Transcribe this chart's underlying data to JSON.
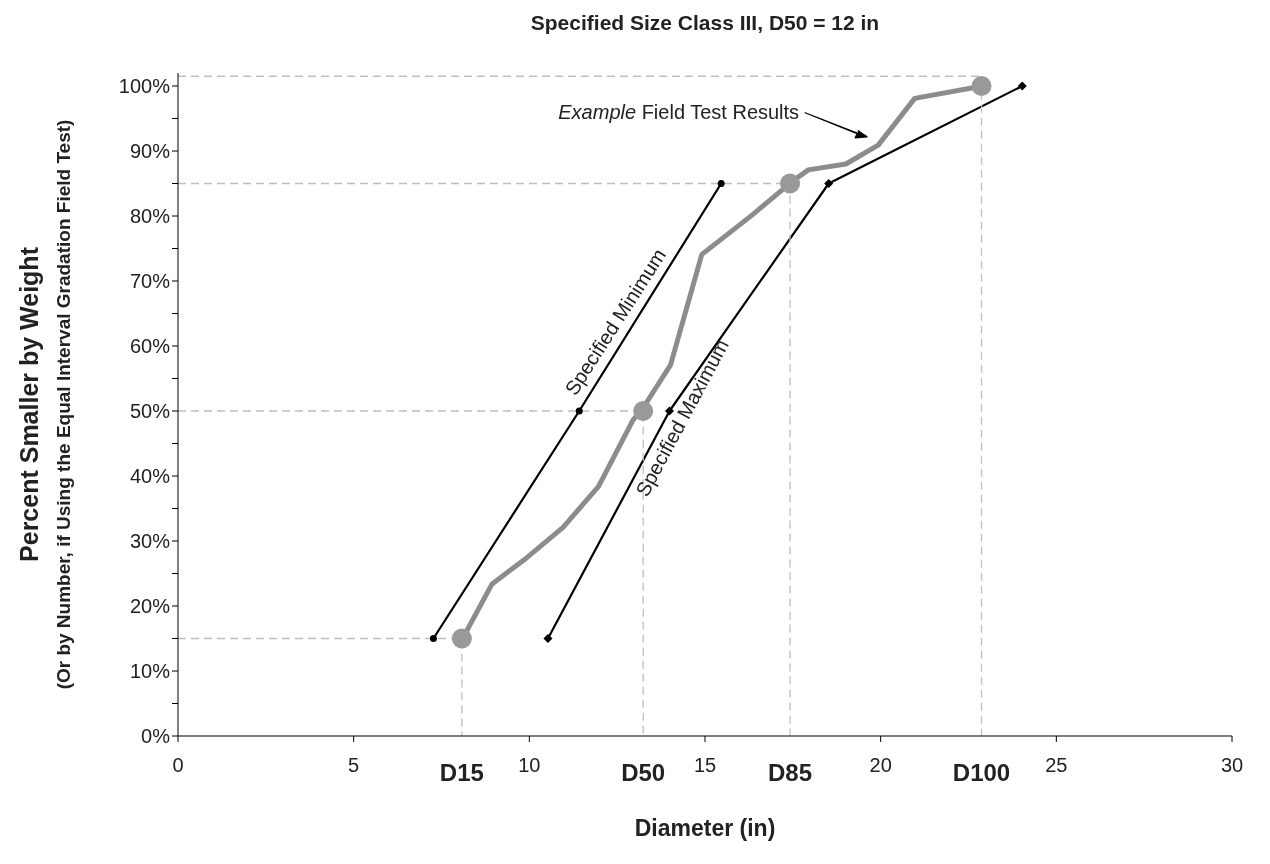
{
  "chart_data": {
    "type": "line",
    "title": "Specified Size Class III, D50 = 12 in",
    "xlabel": "Diameter (in)",
    "ylabel": "Percent Smaller by Weight\n(Or by Number, if Using the Equal Interval Gradation Field Test)",
    "xlim": [
      0,
      30
    ],
    "xticks": [
      0,
      5,
      10,
      15,
      20,
      25,
      30
    ],
    "ylim": [
      0,
      102
    ],
    "yticks": [
      {
        "value": 0,
        "label": "0%"
      },
      {
        "value": 5,
        "label": null
      },
      {
        "value": 10,
        "label": "10%"
      },
      {
        "value": 15,
        "label": null
      },
      {
        "value": 20,
        "label": "20%"
      },
      {
        "value": 25,
        "label": null
      },
      {
        "value": 30,
        "label": "30%"
      },
      {
        "value": 35,
        "label": null
      },
      {
        "value": 40,
        "label": "40%"
      },
      {
        "value": 45,
        "label": null
      },
      {
        "value": 50,
        "label": "50%"
      },
      {
        "value": 55,
        "label": null
      },
      {
        "value": 60,
        "label": "60%"
      },
      {
        "value": 65,
        "label": null
      },
      {
        "value": 70,
        "label": "70%"
      },
      {
        "value": 75,
        "label": null
      },
      {
        "value": 80,
        "label": "80%"
      },
      {
        "value": 85,
        "label": null
      },
      {
        "value": 90,
        "label": "90%"
      },
      {
        "value": 95,
        "label": null
      },
      {
        "value": 100,
        "label": "100%"
      }
    ],
    "grid": false,
    "series": [
      {
        "name": "Specified Minimum",
        "color": "#000000",
        "marker": "circle",
        "x": [
          7.27,
          11.42,
          15.46
        ],
        "values": [
          15,
          50,
          85
        ]
      },
      {
        "name": "Specified Maximum",
        "color": "#000000",
        "marker": "diamond",
        "x": [
          10.53,
          13.99,
          18.52,
          24.03
        ],
        "values": [
          15,
          50,
          85,
          100
        ]
      },
      {
        "color": "#8c8c8c",
        "marker": "none",
        "x": [
          8.0,
          8.94,
          9.92,
          10.96,
          11.97,
          12.95,
          13.24,
          14.02,
          14.91,
          16.33,
          17.48,
          17.94,
          19.01,
          19.93,
          20.97,
          22.9
        ],
        "values": [
          14,
          23.4,
          27.4,
          32.1,
          38.4,
          48.6,
          50.5,
          57.1,
          74.1,
          80.1,
          85.3,
          87.1,
          88,
          90.9,
          98.1,
          100
        ]
      },
      {
        "type": "scatter",
        "color": "#999999",
        "marker": "circle",
        "x": [
          8.08,
          13.24,
          17.42,
          22.87
        ],
        "values": [
          15,
          50,
          85,
          100
        ]
      },
      {
        "type": "line",
        "color": "#bfbfbf",
        "line_style": "dashed",
        "marker": "none",
        "x": [
          0,
          8.08,
          8.08
        ],
        "values": [
          15,
          15,
          0
        ]
      },
      {
        "type": "line",
        "color": "#bfbfbf",
        "line_style": "dashed",
        "marker": "none",
        "x": [
          0,
          13.24,
          13.24
        ],
        "values": [
          50,
          50,
          0
        ]
      },
      {
        "type": "line",
        "color": "#bfbfbf",
        "line_style": "dashed",
        "marker": "none",
        "x": [
          0,
          17.42,
          17.42
        ],
        "values": [
          85,
          85,
          0
        ]
      },
      {
        "type": "line",
        "color": "#bfbfbf",
        "line_style": "dashed",
        "marker": "none",
        "x": [
          0,
          22.87,
          22.87
        ],
        "values": [
          101.5,
          101.5,
          0
        ]
      }
    ],
    "annotations": [
      "Example Field Test Results",
      {
        "text": "D15",
        "x": 8.08,
        "y": 0
      },
      {
        "text": "D50",
        "x": 13.24,
        "y": 0
      },
      {
        "text": "D85",
        "x": 17.42,
        "y": 0
      },
      {
        "text": "D100",
        "x": 22.87,
        "y": 0
      }
    ]
  }
}
